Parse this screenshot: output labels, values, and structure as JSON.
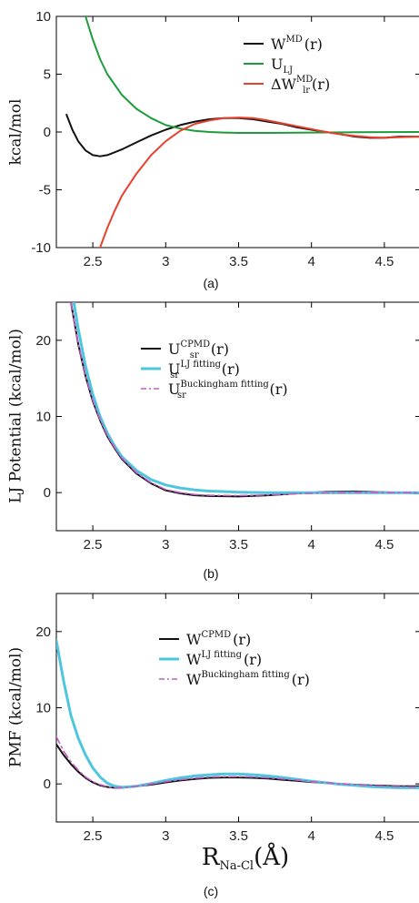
{
  "colors": {
    "black": "#111111",
    "green": "#1e9c3c",
    "red": "#e8402c",
    "cyan": "#4ec6dd",
    "magenta": "#c45ac4"
  },
  "chart_data": [
    {
      "type": "line",
      "panel_label": "(a)",
      "ylabel": "kcal/mol",
      "xlim": [
        2.25,
        4.75
      ],
      "ylim": [
        -10,
        10
      ],
      "xticks": [
        2.5,
        3,
        3.5,
        4,
        4.5
      ],
      "xtick_labels": [
        "2.5",
        "3",
        "3.5",
        "4",
        "4.5"
      ],
      "yticks": [
        -10,
        -5,
        0,
        5,
        10
      ],
      "ytick_labels": [
        "-10",
        "-5",
        "0",
        "5",
        "10"
      ],
      "legend": {
        "position": "top-right"
      },
      "series": [
        {
          "legend_main": "W",
          "legend_sub": "",
          "legend_sup": "MD",
          "legend_tail": "(r)",
          "color": "black",
          "style": "solid",
          "x": [
            2.32,
            2.36,
            2.4,
            2.45,
            2.5,
            2.55,
            2.6,
            2.7,
            2.8,
            2.9,
            3.0,
            3.1,
            3.2,
            3.3,
            3.4,
            3.5,
            3.6,
            3.7,
            3.8,
            3.9,
            4.0,
            4.1,
            4.2,
            4.3,
            4.4,
            4.5,
            4.6,
            4.75
          ],
          "y": [
            1.5,
            0.2,
            -0.8,
            -1.6,
            -2.0,
            -2.1,
            -2.0,
            -1.5,
            -0.9,
            -0.3,
            0.2,
            0.6,
            0.9,
            1.1,
            1.2,
            1.2,
            1.1,
            0.9,
            0.7,
            0.4,
            0.2,
            0.0,
            -0.2,
            -0.4,
            -0.5,
            -0.5,
            -0.4,
            -0.4
          ]
        },
        {
          "legend_main": "U",
          "legend_sub": "LJ",
          "legend_sup": "",
          "legend_tail": "",
          "color": "green",
          "style": "solid",
          "x": [
            2.45,
            2.5,
            2.55,
            2.6,
            2.7,
            2.8,
            2.9,
            3.0,
            3.1,
            3.2,
            3.3,
            3.4,
            3.5,
            3.7,
            4.0,
            4.3,
            4.75
          ],
          "y": [
            10.0,
            8.0,
            6.3,
            5.0,
            3.2,
            2.0,
            1.2,
            0.6,
            0.3,
            0.1,
            0.0,
            -0.05,
            -0.08,
            -0.08,
            -0.05,
            -0.02,
            0.0
          ]
        },
        {
          "legend_main": "ΔW",
          "legend_sub": "lr",
          "legend_sup": "MD",
          "legend_tail": "(r)",
          "color": "red",
          "style": "solid",
          "x": [
            2.55,
            2.6,
            2.65,
            2.7,
            2.8,
            2.9,
            3.0,
            3.1,
            3.2,
            3.3,
            3.4,
            3.5,
            3.6,
            3.7,
            3.8,
            3.9,
            4.0,
            4.1,
            4.2,
            4.3,
            4.4,
            4.5,
            4.6,
            4.75
          ],
          "y": [
            -10.0,
            -8.3,
            -6.8,
            -5.5,
            -3.6,
            -2.0,
            -0.8,
            0.1,
            0.7,
            1.0,
            1.2,
            1.25,
            1.2,
            1.0,
            0.75,
            0.5,
            0.25,
            0.0,
            -0.2,
            -0.35,
            -0.45,
            -0.5,
            -0.45,
            -0.4
          ]
        }
      ]
    },
    {
      "type": "line",
      "panel_label": "(b)",
      "ylabel": "LJ Potential (kcal/mol)",
      "xlim": [
        2.25,
        4.75
      ],
      "ylim": [
        -5,
        25
      ],
      "xticks": [
        2.5,
        3,
        3.5,
        4,
        4.5
      ],
      "xtick_labels": [
        "2.5",
        "3",
        "3.5",
        "4",
        "4.5"
      ],
      "yticks": [
        0,
        10,
        20
      ],
      "ytick_labels": [
        "0",
        "10",
        "20"
      ],
      "legend": {
        "position": "top-right"
      },
      "series": [
        {
          "legend_main": "U",
          "legend_sub": "sr",
          "legend_sup": "CPMD",
          "legend_tail": "(r)",
          "color": "black",
          "style": "solid",
          "x": [
            2.35,
            2.4,
            2.45,
            2.5,
            2.55,
            2.6,
            2.65,
            2.7,
            2.8,
            2.9,
            3.0,
            3.1,
            3.2,
            3.3,
            3.5,
            3.7,
            3.9,
            4.1,
            4.3,
            4.5,
            4.75
          ],
          "y": [
            25.0,
            19.5,
            15.3,
            12.0,
            9.5,
            7.4,
            5.8,
            4.4,
            2.5,
            1.2,
            0.3,
            -0.1,
            -0.35,
            -0.45,
            -0.5,
            -0.35,
            -0.1,
            0.1,
            0.15,
            0.05,
            -0.1
          ]
        },
        {
          "legend_main": "U",
          "legend_sub": "sr",
          "legend_sup": "LJ fitting",
          "legend_tail": "(r)",
          "color": "cyan",
          "style": "solid",
          "x": [
            2.37,
            2.4,
            2.45,
            2.5,
            2.55,
            2.6,
            2.65,
            2.7,
            2.8,
            2.9,
            3.0,
            3.1,
            3.2,
            3.3,
            3.5,
            3.7,
            3.9,
            4.1,
            4.3,
            4.5,
            4.75
          ],
          "y": [
            25.0,
            21.5,
            16.6,
            12.9,
            10.0,
            7.8,
            6.1,
            4.7,
            2.9,
            1.7,
            1.0,
            0.6,
            0.35,
            0.2,
            0.05,
            0.0,
            -0.02,
            -0.02,
            -0.02,
            -0.01,
            0.0
          ]
        },
        {
          "legend_main": "U",
          "legend_sub": "sr",
          "legend_sup": "Buckingham fitting",
          "legend_tail": "(r)",
          "color": "magenta",
          "style": "dashdot",
          "x": [
            2.35,
            2.4,
            2.45,
            2.5,
            2.55,
            2.6,
            2.65,
            2.7,
            2.8,
            2.9,
            3.0,
            3.1,
            3.2,
            3.3,
            3.5,
            3.7,
            3.9,
            4.1,
            4.3,
            4.5,
            4.75
          ],
          "y": [
            25.0,
            19.6,
            15.4,
            12.1,
            9.6,
            7.5,
            5.9,
            4.5,
            2.6,
            1.3,
            0.4,
            0.0,
            -0.25,
            -0.35,
            -0.4,
            -0.3,
            -0.15,
            -0.05,
            0.0,
            0.0,
            0.0
          ]
        }
      ]
    },
    {
      "type": "line",
      "panel_label": "(c)",
      "ylabel": "PMF (kcal/mol)",
      "xlabel_main": "R",
      "xlabel_sub": "Na-Cl",
      "xlabel_tail": "(Å)",
      "xlim": [
        2.25,
        4.75
      ],
      "ylim": [
        -5,
        25
      ],
      "xticks": [
        2.5,
        3,
        3.5,
        4,
        4.5
      ],
      "xtick_labels": [
        "2.5",
        "3",
        "3.5",
        "4",
        "4.5"
      ],
      "yticks": [
        0,
        10,
        20
      ],
      "ytick_labels": [
        "0",
        "10",
        "20"
      ],
      "legend": {
        "position": "top-right"
      },
      "series": [
        {
          "legend_main": "W",
          "legend_sub": "",
          "legend_sup": "CPMD",
          "legend_tail": "(r)",
          "color": "black",
          "style": "solid",
          "x": [
            2.25,
            2.3,
            2.35,
            2.4,
            2.45,
            2.5,
            2.55,
            2.6,
            2.65,
            2.7,
            2.8,
            2.9,
            3.0,
            3.1,
            3.2,
            3.3,
            3.4,
            3.5,
            3.6,
            3.7,
            3.8,
            3.9,
            4.0,
            4.1,
            4.2,
            4.3,
            4.4,
            4.5,
            4.6,
            4.75
          ],
          "y": [
            5.2,
            3.8,
            2.6,
            1.6,
            0.8,
            0.2,
            -0.2,
            -0.4,
            -0.5,
            -0.5,
            -0.3,
            -0.1,
            0.2,
            0.45,
            0.65,
            0.8,
            0.85,
            0.85,
            0.8,
            0.7,
            0.55,
            0.4,
            0.25,
            0.1,
            0.0,
            -0.1,
            -0.2,
            -0.25,
            -0.3,
            -0.3
          ]
        },
        {
          "legend_main": "W",
          "legend_sub": "",
          "legend_sup": "LJ fitting",
          "legend_tail": "(r)",
          "color": "cyan",
          "style": "solid",
          "x": [
            2.25,
            2.3,
            2.35,
            2.4,
            2.45,
            2.5,
            2.55,
            2.6,
            2.65,
            2.7,
            2.8,
            2.9,
            3.0,
            3.1,
            3.2,
            3.3,
            3.4,
            3.5,
            3.6,
            3.7,
            3.8,
            3.9,
            4.0,
            4.1,
            4.2,
            4.3,
            4.4,
            4.5,
            4.6,
            4.75
          ],
          "y": [
            18.8,
            13.5,
            9.0,
            6.0,
            3.8,
            2.1,
            0.9,
            0.1,
            -0.3,
            -0.45,
            -0.3,
            0.05,
            0.45,
            0.8,
            1.05,
            1.2,
            1.3,
            1.3,
            1.2,
            1.05,
            0.85,
            0.6,
            0.35,
            0.15,
            -0.05,
            -0.2,
            -0.35,
            -0.45,
            -0.5,
            -0.5
          ]
        },
        {
          "legend_main": "W",
          "legend_sub": "",
          "legend_sup": "Buckingham fitting",
          "legend_tail": "(r)",
          "color": "magenta",
          "style": "dashdot",
          "x": [
            2.25,
            2.3,
            2.35,
            2.4,
            2.45,
            2.5,
            2.55,
            2.6,
            2.65,
            2.7,
            2.8,
            2.9,
            3.0,
            3.1,
            3.2,
            3.3,
            3.4,
            3.5,
            3.6,
            3.7,
            3.8,
            3.9,
            4.0,
            4.1,
            4.2,
            4.3,
            4.4,
            4.5,
            4.6,
            4.75
          ],
          "y": [
            6.2,
            4.3,
            2.9,
            1.8,
            0.9,
            0.3,
            -0.1,
            -0.35,
            -0.5,
            -0.5,
            -0.3,
            0.0,
            0.3,
            0.55,
            0.75,
            0.9,
            0.95,
            0.95,
            0.9,
            0.8,
            0.65,
            0.5,
            0.3,
            0.15,
            0.0,
            -0.1,
            -0.2,
            -0.3,
            -0.35,
            -0.4
          ]
        }
      ]
    }
  ]
}
